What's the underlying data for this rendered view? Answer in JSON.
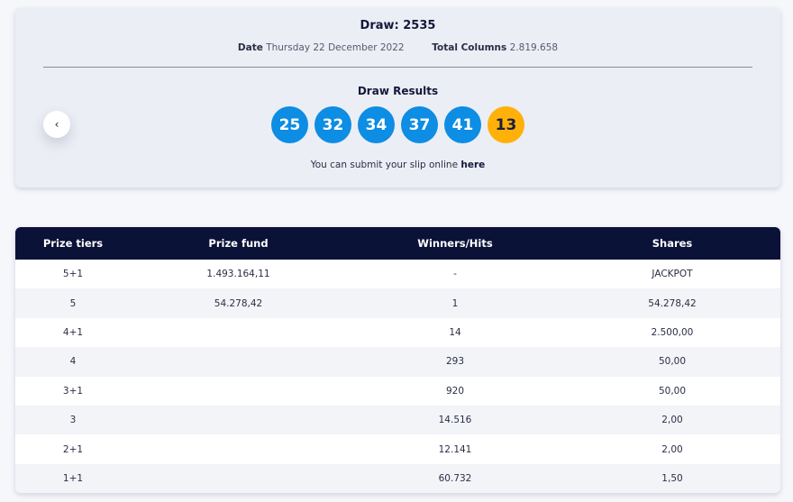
{
  "draw": {
    "title": "Draw: 2535",
    "date_label": "Date",
    "date_value": "Thursday 22 December 2022",
    "columns_label": "Total Columns",
    "columns_value": "2.819.658"
  },
  "results": {
    "title": "Draw Results",
    "numbers": [
      "25",
      "32",
      "34",
      "37",
      "41"
    ],
    "bonus": "13",
    "submit_text": "You can submit your slip online ",
    "submit_link": "here",
    "prev_icon": "‹"
  },
  "colors": {
    "ball": "#0d8de3",
    "bonus_ball": "#ffb10a",
    "table_header": "#0b1238"
  },
  "table": {
    "headers": [
      "Prize tiers",
      "Prize fund",
      "Winners/Hits",
      "Shares"
    ],
    "rows": [
      [
        "5+1",
        "1.493.164,11",
        "-",
        "JACKPOT"
      ],
      [
        "5",
        "54.278,42",
        "1",
        "54.278,42"
      ],
      [
        "4+1",
        "",
        "14",
        "2.500,00"
      ],
      [
        "4",
        "",
        "293",
        "50,00"
      ],
      [
        "3+1",
        "",
        "920",
        "50,00"
      ],
      [
        "3",
        "",
        "14.516",
        "2,00"
      ],
      [
        "2+1",
        "",
        "12.141",
        "2,00"
      ],
      [
        "1+1",
        "",
        "60.732",
        "1,50"
      ]
    ]
  }
}
